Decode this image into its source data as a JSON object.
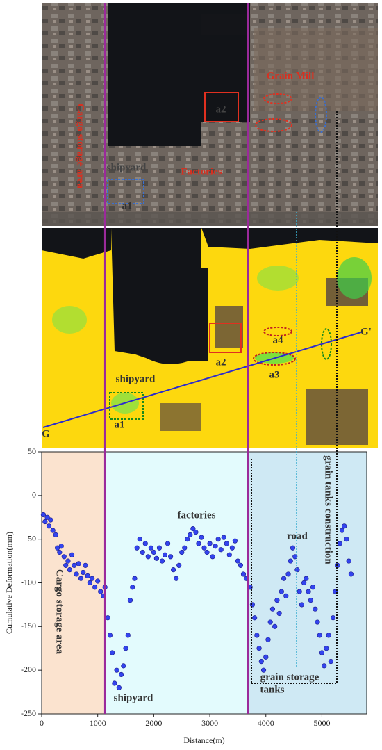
{
  "satellite_image": {
    "labels": [
      "Cargo storage area",
      "Grain Mill",
      "a2",
      "shipyard",
      "Factories",
      "a1"
    ]
  },
  "deformation_map": {
    "labels": [
      "shipyard",
      "a1",
      "a2",
      "a4",
      "a3",
      "G",
      "G'"
    ]
  },
  "chart_data": {
    "type": "scatter",
    "x_label": "Distance(m)",
    "y_label": "Cumulative Deformation(mm)",
    "xlim": [
      0,
      5800
    ],
    "ylim": [
      -250,
      50
    ],
    "xticks": [
      0,
      1000,
      2000,
      3000,
      4000,
      5000
    ],
    "yticks": [
      50,
      0,
      -50,
      -100,
      -150,
      -200,
      -250
    ],
    "color": "#3344ee",
    "regions": [
      {
        "from": 0,
        "to": 1130,
        "color": "#fbe3cf"
      },
      {
        "from": 1130,
        "to": 3680,
        "color": "#e3fbfd"
      },
      {
        "from": 3680,
        "to": 5800,
        "color": "#cfe9f4"
      }
    ],
    "dividers": [
      1130,
      3680
    ],
    "divider_color": "#9b2a9b",
    "annotations": [
      "Cargo storage area",
      "shipyard",
      "factories",
      "road",
      "grain tanks construction",
      "grain storage",
      "tanks"
    ],
    "x": [
      30,
      60,
      100,
      130,
      160,
      200,
      250,
      280,
      320,
      350,
      400,
      430,
      470,
      500,
      540,
      580,
      620,
      660,
      700,
      740,
      780,
      820,
      860,
      900,
      950,
      1000,
      1050,
      1100,
      1130,
      1180,
      1220,
      1260,
      1300,
      1340,
      1380,
      1420,
      1460,
      1500,
      1540,
      1580,
      1620,
      1660,
      1700,
      1750,
      1800,
      1850,
      1900,
      1950,
      2000,
      2050,
      2100,
      2150,
      2200,
      2250,
      2300,
      2350,
      2400,
      2450,
      2500,
      2550,
      2600,
      2650,
      2700,
      2750,
      2800,
      2850,
      2900,
      2950,
      3000,
      3050,
      3100,
      3150,
      3200,
      3250,
      3300,
      3350,
      3400,
      3450,
      3500,
      3550,
      3600,
      3650,
      3720,
      3760,
      3800,
      3840,
      3880,
      3920,
      3960,
      4000,
      4040,
      4080,
      4120,
      4160,
      4200,
      4240,
      4280,
      4320,
      4360,
      4400,
      4440,
      4480,
      4520,
      4560,
      4600,
      4640,
      4680,
      4720,
      4760,
      4800,
      4840,
      4880,
      4920,
      4960,
      5000,
      5040,
      5080,
      5120,
      5160,
      5200,
      5240,
      5280,
      5320,
      5360,
      5400,
      5440,
      5480,
      5520
    ],
    "values": [
      -22,
      -30,
      -25,
      -35,
      -28,
      -40,
      -45,
      -60,
      -65,
      -58,
      -70,
      -80,
      -75,
      -85,
      -68,
      -80,
      -90,
      -78,
      -95,
      -88,
      -80,
      -92,
      -100,
      -95,
      -105,
      -98,
      -110,
      -115,
      -105,
      -140,
      -160,
      -180,
      -215,
      -200,
      -220,
      -205,
      -195,
      -175,
      -160,
      -120,
      -105,
      -95,
      -60,
      -50,
      -65,
      -55,
      -70,
      -60,
      -65,
      -72,
      -60,
      -75,
      -68,
      -55,
      -70,
      -85,
      -95,
      -80,
      -65,
      -60,
      -50,
      -45,
      -38,
      -42,
      -55,
      -48,
      -60,
      -65,
      -55,
      -70,
      -58,
      -50,
      -62,
      -48,
      -55,
      -68,
      -60,
      -52,
      -75,
      -80,
      -90,
      -95,
      -105,
      -125,
      -140,
      -160,
      -175,
      -190,
      -200,
      -185,
      -165,
      -145,
      -130,
      -150,
      -120,
      -135,
      -110,
      -95,
      -115,
      -90,
      -75,
      -60,
      -70,
      -85,
      -110,
      -125,
      -100,
      -95,
      -110,
      -120,
      -105,
      -130,
      -145,
      -160,
      -180,
      -195,
      -175,
      -160,
      -190,
      -140,
      -110,
      -80,
      -55,
      -40,
      -35,
      -50,
      -75,
      -90
    ]
  }
}
